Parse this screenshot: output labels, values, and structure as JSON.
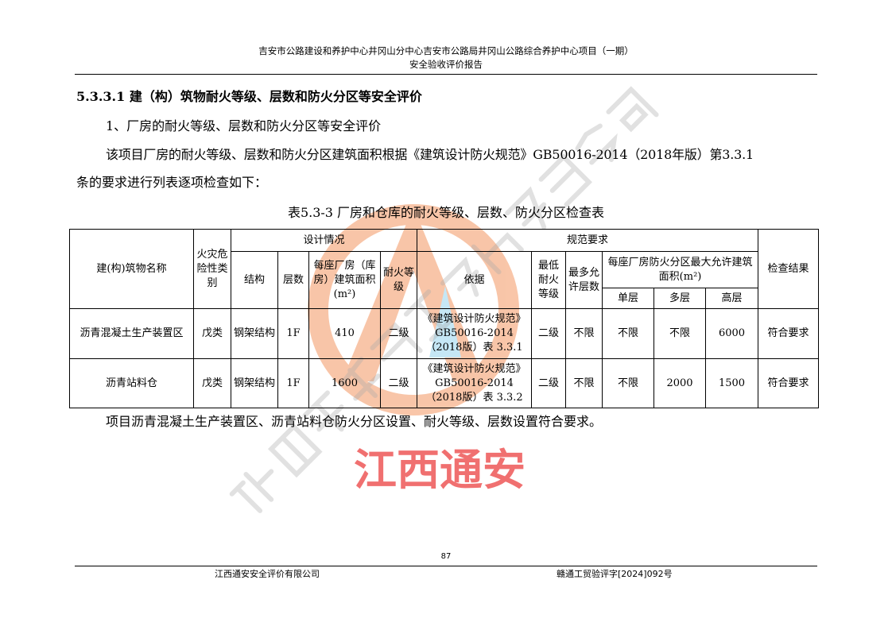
{
  "header": {
    "line1": "吉安市公路建设和养护中心井冈山分中心吉安市公路局井冈山公路综合养护中心项目（一期）",
    "line2": "安全验收评价报告"
  },
  "section_title": "5.3.3.1  建（构）筑物耐火等级、层数和防火分区等安全评价",
  "para1": "1、厂房的耐火等级、层数和防火分区等安全评价",
  "para2a": "该项目厂房的耐火等级、层数和防火分区建筑面积根据《建筑设计防火规范》GB50016-2014（2018年版）第3.3.1",
  "para2b": "条的要求进行列表逐项检查如下：",
  "table_caption": "表5.3-3      厂房和仓库的耐火等级、层数、防火分区检查表",
  "table": {
    "h_name": "建(构)筑物名称",
    "h_hazard": "火灾危险性类别",
    "h_design": "设计情况",
    "h_norm": "规范要求",
    "h_result": "检查结果",
    "h_struct": "结构",
    "h_floors": "层数",
    "h_area": "每座厂房（库房）建筑面积(m²)",
    "h_grade": "耐火等级",
    "h_basis": "依据",
    "h_min_grade": "最低耐火等级",
    "h_max_floors": "最多允许层数",
    "h_max_area": "每座厂房防火分区最大允许建筑面积(m²)",
    "h_single": "单层",
    "h_multi": "多层",
    "h_high": "高层",
    "rows": [
      {
        "name": "沥青混凝土生产装置区",
        "hazard": "戊类",
        "struct": "钢架结构",
        "floors": "1F",
        "area": "410",
        "grade": "二级",
        "basis": "《建筑设计防火规范》GB50016-2014（2018版）表 3.3.1",
        "min_grade": "二级",
        "max_floors": "不限",
        "single": "不限",
        "multi": "不限",
        "high": "6000",
        "result": "符合要求"
      },
      {
        "name": "沥青站料仓",
        "hazard": "戊类",
        "struct": "钢架结构",
        "floors": "1F",
        "area": "1600",
        "grade": "二级",
        "basis": "《建筑设计防火规范》GB50016-2014（2018版）表 3.3.2",
        "min_grade": "二级",
        "max_floors": "不限",
        "single": "不限",
        "multi": "2000",
        "high": "1500",
        "result": "符合要求"
      }
    ]
  },
  "conclusion": "项目沥青混凝土生产装置区、沥青站料仓防火分区设置、耐火等级、层数设置符合要求。",
  "page_number": "87",
  "footer": {
    "left": "江西通安安全评价有限公司",
    "right": "赣通工贸验评字[2024]092号"
  },
  "watermark": {
    "company": "江西通安安全评价有限公司",
    "short": "江西通安",
    "logo_color": "#f5a070",
    "text_color": "#f07070"
  }
}
